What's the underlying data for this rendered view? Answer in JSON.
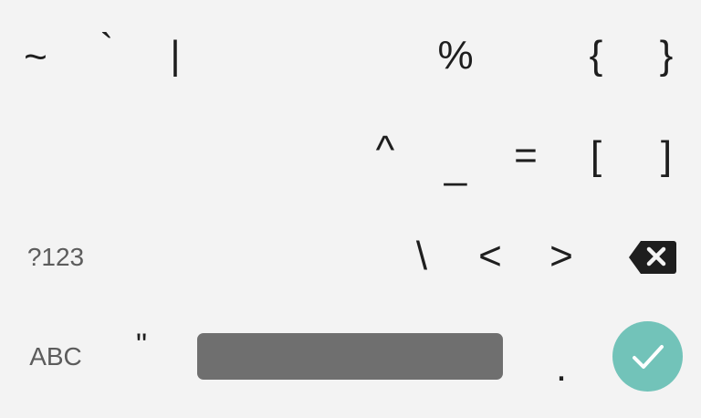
{
  "keyboard": {
    "accent_color": "#72c3b9",
    "space_bar_color": "#6f6f6f",
    "background_color": "#f3f3f3",
    "row1": {
      "tilde": "~",
      "backtick": "`",
      "pipe": "|",
      "percent": "%",
      "left_brace": "{",
      "right_brace": "}"
    },
    "row2": {
      "caret": "^",
      "underscore": "_",
      "equals": "=",
      "left_bracket": "[",
      "right_bracket": "]"
    },
    "row3": {
      "symbols_toggle": "?123",
      "backslash": "\\",
      "less_than": "<",
      "greater_than": ">",
      "backspace_icon": "backspace-icon"
    },
    "row4": {
      "abc_toggle": "ABC",
      "double_quote": "\"",
      "period": ".",
      "enter_icon": "checkmark-icon"
    }
  }
}
